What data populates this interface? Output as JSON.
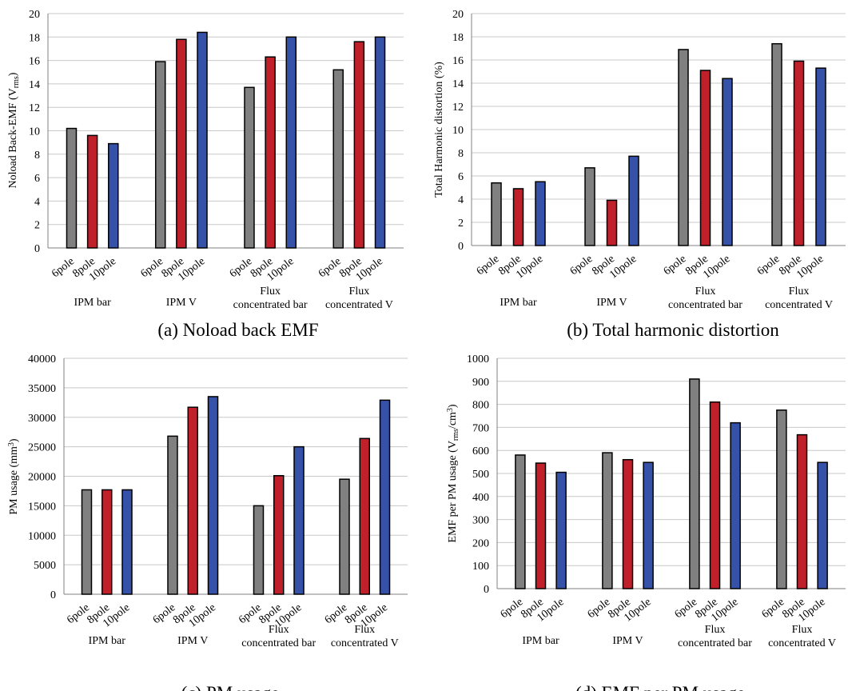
{
  "colors": {
    "6pole": "#808080",
    "8pole": "#c0202a",
    "10pole": "#3651a8",
    "grid": "#c8c8c8",
    "axis": "#808080"
  },
  "chart_data": [
    {
      "id": "a",
      "type": "bar",
      "caption": "(a) Noload back EMF",
      "ylabel": "Noload Back-EMF (V",
      "ylabel_sub": "rms",
      "ylabel_post": ")",
      "ylabel_sup": "",
      "ylim": [
        0,
        20
      ],
      "yticks": [
        "0",
        "2",
        "4",
        "6",
        "8",
        "10",
        "12",
        "14",
        "16",
        "18",
        "20"
      ],
      "tick_values": [
        0,
        2,
        4,
        6,
        8,
        10,
        12,
        14,
        16,
        18,
        20
      ],
      "subcategories": [
        "6pole",
        "8pole",
        "10pole"
      ],
      "categories": [
        [
          "IPM bar"
        ],
        [
          "IPM V"
        ],
        [
          "Flux",
          "concentrated  bar"
        ],
        [
          "Flux",
          "concentrated  V"
        ]
      ],
      "series": [
        {
          "name": "6pole",
          "values": [
            10.2,
            15.9,
            13.7,
            15.2
          ]
        },
        {
          "name": "8pole",
          "values": [
            9.6,
            17.8,
            16.3,
            17.6
          ]
        },
        {
          "name": "10pole",
          "values": [
            8.9,
            18.4,
            18.0,
            18.0
          ]
        }
      ]
    },
    {
      "id": "b",
      "type": "bar",
      "caption": "(b) Total harmonic distortion",
      "ylabel": "Total Harmonic  distortion  (%)",
      "ylabel_sub": "",
      "ylabel_post": "",
      "ylabel_sup": "",
      "ylim": [
        0,
        20
      ],
      "yticks": [
        "0",
        "2",
        "4",
        "6",
        "8",
        "10",
        "12",
        "14",
        "16",
        "18",
        "20"
      ],
      "tick_values": [
        0,
        2,
        4,
        6,
        8,
        10,
        12,
        14,
        16,
        18,
        20
      ],
      "subcategories": [
        "6pole",
        "8pole",
        "10pole"
      ],
      "categories": [
        [
          "IPM bar"
        ],
        [
          "IPM V"
        ],
        [
          "Flux",
          "concentrated  bar"
        ],
        [
          "Flux",
          "concentrated  V"
        ]
      ],
      "series": [
        {
          "name": "6pole",
          "values": [
            5.4,
            6.7,
            16.9,
            17.4
          ]
        },
        {
          "name": "8pole",
          "values": [
            4.9,
            3.9,
            15.1,
            15.9
          ]
        },
        {
          "name": "10pole",
          "values": [
            5.5,
            7.7,
            14.4,
            15.3
          ]
        }
      ]
    },
    {
      "id": "c",
      "type": "bar",
      "caption": "(c) PM usage",
      "ylabel": "PM usage  (mm",
      "ylabel_sub": "",
      "ylabel_sup": "3",
      "ylabel_post": ")",
      "ylim": [
        0,
        40000
      ],
      "yticks": [
        "0",
        "5000",
        "10000",
        "15000",
        "20000",
        "25000",
        "30000",
        "35000",
        "40000"
      ],
      "tick_values": [
        0,
        5000,
        10000,
        15000,
        20000,
        25000,
        30000,
        35000,
        40000
      ],
      "subcategories": [
        "6pole",
        "8pole",
        "10pole"
      ],
      "categories": [
        [
          "IPM bar"
        ],
        [
          "IPM V"
        ],
        [
          "Flux",
          "concentrated  bar"
        ],
        [
          "Flux",
          "concentrated  V"
        ]
      ],
      "series": [
        {
          "name": "6pole",
          "values": [
            17700,
            26800,
            15000,
            19500
          ]
        },
        {
          "name": "8pole",
          "values": [
            17700,
            31700,
            20100,
            26400
          ]
        },
        {
          "name": "10pole",
          "values": [
            17700,
            33500,
            25000,
            32900
          ]
        }
      ]
    },
    {
      "id": "d",
      "type": "bar",
      "caption": "(d) EMF per PM usage",
      "ylabel": "EMF  per PM usage  (V",
      "ylabel_sub": "rms",
      "ylabel_mid": "/cm",
      "ylabel_sup": "3",
      "ylabel_post": ")",
      "ylim": [
        0,
        1000
      ],
      "yticks": [
        "0",
        "100",
        "200",
        "300",
        "400",
        "500",
        "600",
        "700",
        "800",
        "900",
        "1000"
      ],
      "tick_values": [
        0,
        100,
        200,
        300,
        400,
        500,
        600,
        700,
        800,
        900,
        1000
      ],
      "subcategories": [
        "6pole",
        "8pole",
        "10pole"
      ],
      "categories": [
        [
          "IPM bar"
        ],
        [
          "IPM V"
        ],
        [
          "Flux",
          "concentrated  bar"
        ],
        [
          "Flux",
          "concentrated  V"
        ]
      ],
      "series": [
        {
          "name": "6pole",
          "values": [
            580,
            590,
            910,
            775
          ]
        },
        {
          "name": "8pole",
          "values": [
            545,
            560,
            810,
            668
          ]
        },
        {
          "name": "10pole",
          "values": [
            505,
            548,
            720,
            548
          ]
        }
      ]
    }
  ]
}
